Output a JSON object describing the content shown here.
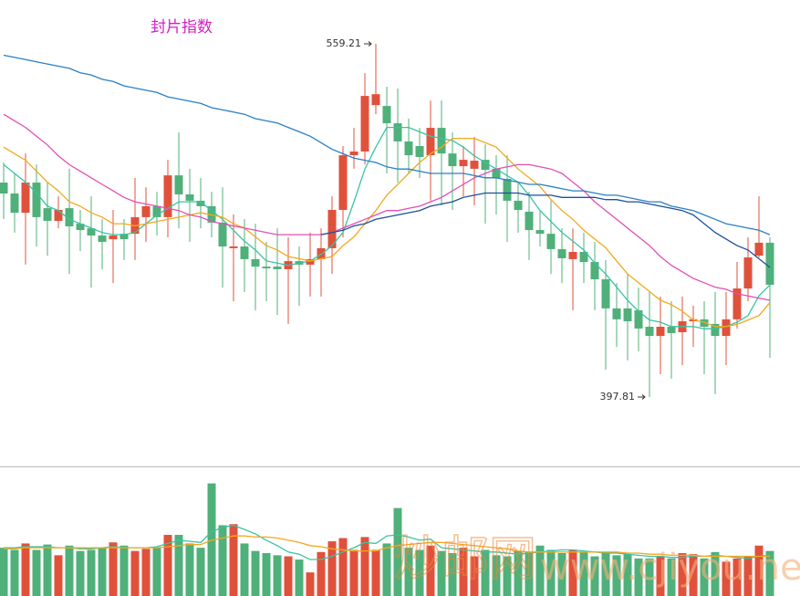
{
  "chart_data": [
    {
      "type": "candlestick",
      "title": "封片指数",
      "up_color": "#e0513c",
      "down_color": "#4fb07a",
      "ylim": [
        366.5,
        570.9
      ],
      "annotations": [
        559.21,
        397.81
      ],
      "open": [
        495.8,
        490.8,
        482.0,
        495.8,
        484.1,
        478.3,
        484.1,
        477.0,
        474.9,
        471.6,
        469.9,
        472.4,
        472.4,
        480.0,
        485.0,
        480.0,
        499.1,
        490.4,
        487.5,
        485.0,
        477.5,
        465.8,
        466.6,
        460.8,
        457.4,
        457.4,
        456.2,
        459.9,
        458.3,
        460.8,
        465.8,
        483.3,
        508.3,
        510.0,
        531.2,
        530.8,
        522.9,
        514.6,
        512.5,
        508.3,
        520.8,
        509.1,
        503.3,
        502.1,
        506.2,
        502.1,
        497.5,
        487.5,
        482.5,
        474.1,
        472.4,
        465.4,
        460.8,
        464.1,
        459.5,
        451.6,
        438.3,
        438.3,
        437.4,
        429.9,
        425.7,
        429.9,
        427.4,
        432.4,
        433.3,
        431.2,
        425.7,
        433.3,
        447.4,
        462.4,
        468.3
      ],
      "high": [
        505.0,
        500.0,
        509.1,
        504.1,
        495.8,
        489.5,
        502.1,
        483.3,
        489.5,
        479.1,
        483.3,
        479.1,
        497.9,
        493.7,
        491.6,
        506.2,
        518.7,
        502.1,
        497.9,
        491.6,
        493.7,
        481.2,
        479.1,
        477.0,
        468.7,
        474.9,
        470.8,
        466.6,
        472.9,
        474.9,
        489.5,
        512.5,
        520.8,
        545.8,
        559.21,
        539.6,
        538.8,
        525.0,
        520.8,
        533.3,
        533.3,
        518.7,
        512.5,
        516.6,
        513.3,
        508.3,
        508.3,
        495.8,
        491.6,
        483.3,
        487.5,
        474.9,
        474.9,
        472.9,
        468.7,
        460.4,
        449.9,
        454.1,
        447.8,
        445.8,
        443.7,
        441.6,
        443.7,
        439.5,
        441.6,
        445.8,
        445.8,
        459.5,
        470.8,
        489.5,
        470.8
      ],
      "low": [
        479.1,
        472.9,
        458.3,
        466.6,
        462.4,
        474.9,
        454.1,
        464.5,
        447.8,
        456.2,
        449.9,
        460.4,
        460.4,
        468.7,
        471.6,
        470.8,
        474.9,
        468.7,
        474.9,
        470.8,
        447.8,
        441.6,
        445.8,
        437.4,
        441.6,
        435.3,
        431.2,
        439.5,
        443.7,
        443.7,
        454.1,
        470.8,
        502.1,
        504.1,
        527.1,
        500.0,
        495.8,
        500.0,
        497.9,
        487.5,
        485.4,
        483.3,
        489.5,
        485.4,
        477.0,
        481.2,
        468.7,
        472.9,
        460.4,
        466.6,
        454.1,
        449.9,
        437.4,
        449.9,
        437.4,
        410.3,
        420.7,
        414.5,
        418.7,
        397.81,
        408.2,
        406.2,
        412.4,
        420.7,
        408.2,
        399.1,
        412.4,
        429.1,
        441.6,
        461.6,
        415.7
      ],
      "close": [
        490.8,
        482.0,
        495.8,
        480.0,
        478.3,
        483.3,
        475.8,
        474.1,
        471.6,
        468.7,
        471.6,
        469.9,
        480.0,
        485.0,
        480.0,
        499.1,
        490.4,
        487.5,
        485.0,
        477.5,
        466.6,
        466.6,
        460.8,
        457.4,
        456.6,
        456.2,
        459.9,
        458.3,
        460.8,
        465.8,
        483.3,
        508.3,
        510.0,
        535.4,
        536.2,
        522.9,
        514.6,
        508.3,
        507.5,
        520.8,
        509.1,
        503.3,
        506.2,
        505.8,
        501.6,
        497.9,
        487.5,
        483.3,
        474.1,
        472.4,
        465.4,
        461.2,
        464.1,
        459.5,
        451.6,
        438.3,
        433.3,
        432.4,
        429.1,
        425.7,
        429.9,
        427.0,
        432.4,
        433.3,
        429.9,
        425.7,
        433.3,
        447.4,
        461.6,
        468.3,
        449.1
      ],
      "series": [
        {
          "color": "#3cc2a2",
          "values": [
            504,
            500,
            496,
            491,
            485,
            483,
            479,
            477,
            475,
            473,
            472,
            472,
            473,
            477,
            481,
            484,
            487,
            487,
            487,
            483,
            479,
            474,
            469,
            465,
            460,
            459,
            458,
            459,
            460,
            463,
            467,
            473,
            487,
            502,
            512,
            521,
            521,
            521,
            519,
            517,
            516,
            515,
            512,
            508,
            505,
            502,
            499,
            496,
            490,
            483,
            478,
            473,
            469,
            465,
            459,
            454,
            448,
            442,
            437,
            433,
            432,
            430,
            430,
            430,
            429,
            429,
            430,
            432,
            435,
            444,
            449
          ]
        },
        {
          "color": "#f4a81c",
          "values": [
            512,
            509,
            506,
            501,
            496,
            492,
            487,
            485,
            482,
            480,
            477,
            477,
            476,
            477,
            478,
            479,
            480,
            481,
            482,
            481,
            480,
            477,
            475,
            471,
            467,
            465,
            462,
            461,
            460,
            461,
            462,
            467,
            471,
            477,
            483,
            490,
            495,
            500,
            505,
            509,
            512,
            516,
            516,
            516,
            514,
            512,
            507,
            502,
            498,
            494,
            488,
            483,
            479,
            474,
            470,
            466,
            460,
            454,
            450,
            446,
            442,
            440,
            437,
            433,
            432,
            430,
            430,
            431,
            433,
            435,
            441
          ]
        },
        {
          "color": "#e14fb4",
          "values": [
            527,
            524,
            521,
            517,
            513,
            508,
            504,
            501,
            498,
            495,
            492,
            489,
            487,
            486,
            485,
            484,
            483,
            481,
            480,
            478,
            477,
            476,
            475,
            474,
            473,
            472,
            472,
            472,
            472,
            472,
            473,
            475,
            477,
            479,
            481,
            483,
            483,
            484,
            485,
            487,
            489,
            492,
            495,
            498,
            500,
            502,
            503,
            504,
            504,
            503,
            502,
            500,
            496,
            492,
            487,
            483,
            479,
            475,
            471,
            467,
            462,
            458,
            455,
            452,
            450,
            448,
            447,
            445,
            444,
            443,
            442
          ]
        },
        {
          "color": "#2a7fc4",
          "values": [
            554,
            553,
            552,
            551,
            550,
            549,
            548,
            546,
            545,
            543,
            542,
            540,
            539,
            538,
            537,
            535,
            534,
            533,
            532,
            530,
            529,
            528,
            527,
            525,
            524,
            523,
            521,
            519,
            517,
            514,
            511,
            509,
            507,
            506,
            505,
            503,
            502,
            502,
            501,
            500,
            500,
            500,
            500,
            499,
            498,
            498,
            497,
            496,
            495,
            495,
            494,
            493,
            492,
            492,
            491,
            490,
            490,
            489,
            488,
            487,
            487,
            485,
            484,
            483,
            481,
            479,
            477,
            476,
            475,
            474,
            472
          ]
        },
        {
          "color": "#1d4f9e",
          "values": [
            null,
            null,
            null,
            null,
            null,
            null,
            null,
            null,
            null,
            null,
            null,
            null,
            null,
            null,
            null,
            null,
            null,
            null,
            null,
            null,
            null,
            null,
            null,
            null,
            null,
            null,
            null,
            null,
            null,
            472,
            473,
            474,
            476,
            477,
            479,
            480,
            481,
            482,
            483,
            485,
            486,
            487,
            489,
            490,
            491,
            491,
            491,
            491,
            490,
            490,
            490,
            489,
            489,
            489,
            489,
            488,
            488,
            487,
            487,
            486,
            485,
            484,
            483,
            481,
            477,
            473,
            470,
            467,
            465,
            461,
            457
          ]
        }
      ]
    },
    {
      "type": "bar",
      "ylim": [
        0,
        120
      ],
      "values": [
        45,
        43,
        49,
        43,
        48,
        38,
        47,
        42,
        43,
        45,
        50,
        47,
        42,
        44,
        45,
        57,
        57,
        49,
        45,
        105,
        66,
        67,
        49,
        42,
        40,
        38,
        37,
        34,
        22,
        41,
        51,
        54,
        43,
        55,
        43,
        49,
        82,
        45,
        43,
        47,
        42,
        40,
        45,
        37,
        43,
        38,
        37,
        42,
        41,
        47,
        43,
        40,
        43,
        41,
        37,
        41,
        38,
        39,
        35,
        35,
        37,
        35,
        40,
        39,
        35,
        41,
        32,
        35,
        37,
        47,
        42
      ],
      "series": [
        {
          "color": "#3cc2a2",
          "values": [
            45,
            45,
            46,
            46,
            46,
            45,
            45,
            44,
            44,
            45,
            46,
            45,
            45,
            45,
            46,
            49,
            52,
            51,
            50,
            60,
            64,
            66,
            62,
            58,
            52,
            47,
            41,
            39,
            34,
            34,
            37,
            41,
            45,
            50,
            49,
            56,
            57,
            55,
            52,
            53,
            45,
            44,
            43,
            42,
            41,
            41,
            40,
            39,
            40,
            41,
            42,
            43,
            43,
            42,
            41,
            40,
            40,
            39,
            38,
            37,
            37,
            36,
            36,
            37,
            37,
            38,
            37,
            36,
            35,
            37,
            38
          ]
        },
        {
          "color": "#f4a81c",
          "values": [
            44,
            44,
            45,
            45,
            45,
            45,
            45,
            45,
            45,
            45,
            45,
            45,
            45,
            45,
            45,
            46,
            47,
            48,
            48,
            52,
            54,
            56,
            56,
            55,
            55,
            54,
            52,
            50,
            47,
            46,
            44,
            43,
            42,
            42,
            42,
            45,
            47,
            48,
            49,
            50,
            50,
            49,
            48,
            47,
            46,
            45,
            44,
            42,
            41,
            41,
            41,
            41,
            41,
            41,
            41,
            41,
            41,
            40,
            40,
            39,
            39,
            38,
            38,
            38,
            37,
            37,
            37,
            37,
            37,
            37,
            37
          ]
        }
      ]
    }
  ],
  "watermark": [
    "炒邮网",
    "www.cjiyou.net"
  ]
}
